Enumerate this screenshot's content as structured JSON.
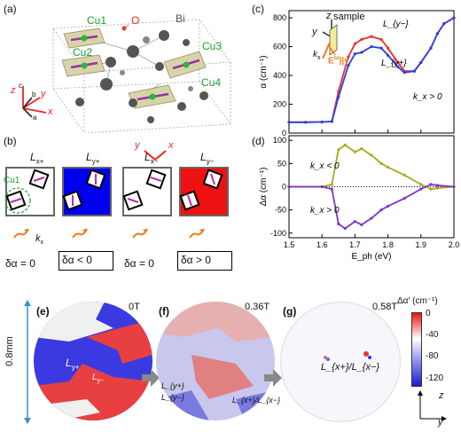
{
  "panels": {
    "a": "(a)",
    "b": "(b)",
    "c": "(c)",
    "d": "(d)",
    "e": "(e)",
    "f": "(f)",
    "g": "(g)"
  },
  "crystal": {
    "sites": [
      "Cu1",
      "Cu2",
      "Cu3",
      "Cu4"
    ],
    "atoms": [
      "O",
      "Bi"
    ],
    "axes": {
      "z": "z",
      "c": "c",
      "y": "y",
      "b": "b",
      "x": "x",
      "a": "a"
    }
  },
  "domains": {
    "labels": [
      "L",
      "L",
      "L",
      "L"
    ],
    "subscripts": [
      "x+",
      "y+",
      "x−",
      "y−"
    ],
    "colors": [
      "#ffffff",
      "#0000ee",
      "#ffffff",
      "#ee1111"
    ],
    "cu_label": "Cu1",
    "kx": "k",
    "kx_sub": "x",
    "deltas": [
      "δα = 0",
      "δα < 0",
      "δα = 0",
      "δα > 0"
    ],
    "axis_y": "y",
    "axis_x": "x"
  },
  "inset_c": {
    "z": "z",
    "sample": "sample",
    "y": "y",
    "kx": "k",
    "kx_sub": "x",
    "E": "E",
    "Eomega": "ω",
    "parallel": "||y"
  },
  "chart_data": [
    {
      "type": "line",
      "panel": "c",
      "xlabel": "",
      "ylabel": "α (cm⁻¹)",
      "xlim": [
        1.5,
        2.0
      ],
      "ylim": [
        0,
        850
      ],
      "yticks": [
        0,
        200,
        400,
        600,
        800
      ],
      "annotation": "k_x > 0",
      "series": [
        {
          "name": "L_{y−}",
          "color": "#e53030",
          "x": [
            1.5,
            1.55,
            1.6,
            1.63,
            1.65,
            1.68,
            1.7,
            1.72,
            1.75,
            1.78,
            1.8,
            1.83,
            1.85,
            1.88,
            1.9,
            1.93,
            1.95,
            1.97,
            2.0
          ],
          "y": [
            75,
            75,
            77,
            80,
            290,
            530,
            620,
            650,
            670,
            650,
            590,
            490,
            430,
            430,
            490,
            590,
            690,
            760,
            800
          ]
        },
        {
          "name": "L_{y+}",
          "color": "#2a3fe0",
          "x": [
            1.5,
            1.55,
            1.6,
            1.63,
            1.65,
            1.68,
            1.7,
            1.72,
            1.75,
            1.78,
            1.8,
            1.83,
            1.85,
            1.88,
            1.9,
            1.93,
            1.95,
            1.97,
            2.0
          ],
          "y": [
            75,
            75,
            77,
            80,
            250,
            470,
            550,
            560,
            600,
            590,
            540,
            460,
            420,
            430,
            490,
            590,
            690,
            760,
            800
          ]
        }
      ]
    },
    {
      "type": "line",
      "panel": "d",
      "xlabel": "E_ph (eV)",
      "ylabel": "Δα (cm⁻¹)",
      "xlim": [
        1.5,
        2.0
      ],
      "ylim": [
        -110,
        110
      ],
      "xticks": [
        1.5,
        1.6,
        1.7,
        1.8,
        1.9,
        2.0
      ],
      "yticks": [
        -100,
        -50,
        0,
        50,
        100
      ],
      "series": [
        {
          "name": "k_x < 0",
          "color": "#a8a81e",
          "x": [
            1.5,
            1.6,
            1.63,
            1.65,
            1.67,
            1.7,
            1.72,
            1.75,
            1.78,
            1.8,
            1.85,
            1.9,
            1.93,
            1.95,
            2.0
          ],
          "y": [
            0,
            0,
            5,
            80,
            90,
            75,
            82,
            68,
            50,
            42,
            25,
            5,
            -5,
            -3,
            0
          ]
        },
        {
          "name": "k_x > 0",
          "color": "#7a35c8",
          "x": [
            1.5,
            1.6,
            1.63,
            1.65,
            1.67,
            1.7,
            1.72,
            1.75,
            1.78,
            1.8,
            1.85,
            1.9,
            1.93,
            1.95,
            2.0
          ],
          "y": [
            0,
            0,
            -5,
            -80,
            -90,
            -75,
            -82,
            -68,
            -50,
            -42,
            -25,
            -5,
            5,
            3,
            0
          ]
        }
      ]
    }
  ],
  "images": {
    "scale": "0.8mm",
    "fields": [
      "0T",
      "0.36T",
      "0.58T"
    ],
    "e_labels": {
      "a": "L",
      "a_sub": "y+",
      "b": "L",
      "b_sub": "y−"
    },
    "f_labels": [
      "L_{y+}",
      "L_{y−}",
      "L_{x+}/L_{x−}"
    ],
    "g_label": "L_{x+}/L_{x−}",
    "colorbar_title": "Δα′ (cm⁻¹)",
    "colorbar_ticks": [
      "0",
      "-40",
      "-80",
      "-120"
    ],
    "axis_z": "z",
    "axis_y": "y"
  },
  "colors": {
    "red": "#ee1111",
    "blue": "#1a1ad6",
    "teal": "#2a9a8a",
    "magenta": "#d61a8a",
    "green": "#2aa02a"
  }
}
